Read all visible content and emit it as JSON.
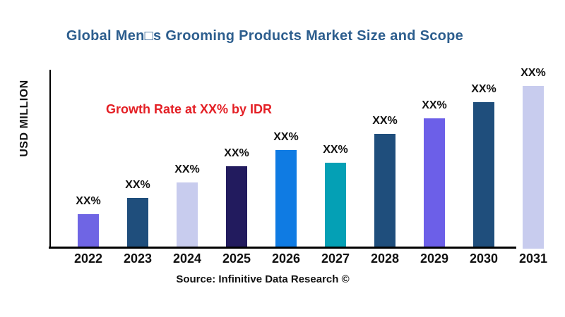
{
  "title": {
    "text": "Global Men□s Grooming Products Market Size and Scope",
    "color": "#2D5E8E"
  },
  "annotation": {
    "text": "Growth Rate at XX% by IDR",
    "color": "#E41F25"
  },
  "footer": {
    "text": "Source: Infinitive Data Research ©"
  },
  "chart_data": {
    "type": "bar",
    "title": "Global Men□s Grooming Products Market Size and Scope",
    "xlabel": "",
    "ylabel": "USD MILLION",
    "categories": [
      "2022",
      "2023",
      "2024",
      "2025",
      "2026",
      "2027",
      "2028",
      "2029",
      "2030",
      "2031"
    ],
    "bar_labels": [
      "XX%",
      "XX%",
      "XX%",
      "XX%",
      "XX%",
      "XX%",
      "XX%",
      "XX%",
      "XX%",
      "XX%"
    ],
    "values": [
      46,
      69,
      91,
      114,
      137,
      119,
      160,
      182,
      205,
      228
    ],
    "values_note": "actual magnitudes are masked as XX% in the source image; values are estimated relative heights on a 0-252 axis scale",
    "ylim": [
      0,
      252
    ],
    "bar_colors": [
      "#6F65E4",
      "#1F4E7C",
      "#C8CCEE",
      "#221B5E",
      "#0F7BE3",
      "#04A0B5",
      "#1F4E7C",
      "#6C5FE8",
      "#1F4E7C",
      "#C8CCEE"
    ],
    "grid": false,
    "legend": false,
    "y_tick_labels": []
  }
}
